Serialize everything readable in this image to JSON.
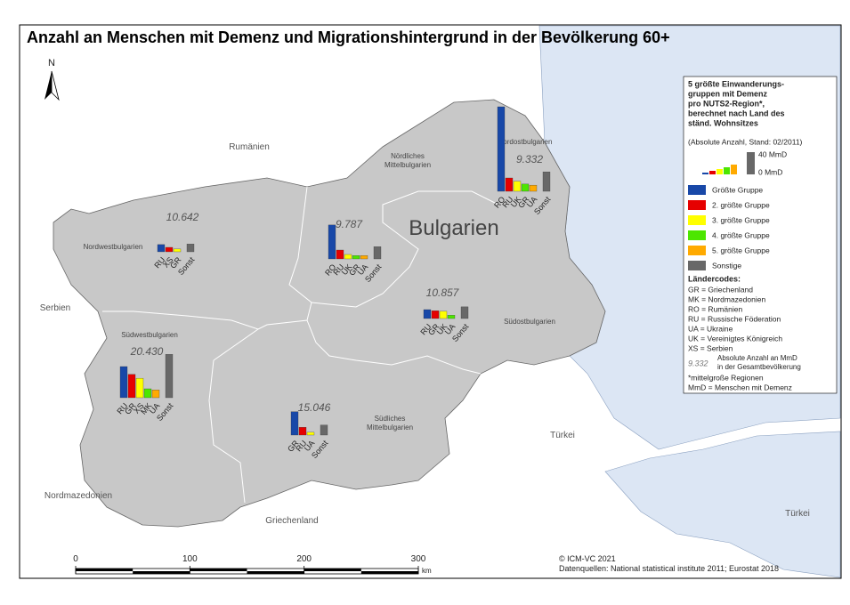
{
  "title": "Anzahl an Menschen mit Demenz und Migrationshintergrund in der Bevölkerung 60+",
  "north": "N",
  "places": [
    "Rumänien",
    "Serbien",
    "Nordmazedonien",
    "Griechenland",
    "Türkei",
    "Türkei"
  ],
  "country_label": "Bulgarien",
  "regions": [
    {
      "name": [
        "Nordwestbulgarien"
      ],
      "total": "10.642",
      "bars": [
        {
          "code": "RU",
          "value": 13
        },
        {
          "code": "XS",
          "value": 8
        },
        {
          "code": "GR",
          "value": 5
        },
        {
          "code": "Sonst",
          "value": 14
        }
      ]
    },
    {
      "name": [
        "Nördliches",
        "Mittelbulgarien"
      ],
      "total": "9.787",
      "bars": [
        {
          "code": "RO",
          "value": 61
        },
        {
          "code": "RU",
          "value": 16
        },
        {
          "code": "UK",
          "value": 8
        },
        {
          "code": "GR",
          "value": 6
        },
        {
          "code": "UA",
          "value": 6
        },
        {
          "code": "Sonst",
          "value": 22
        }
      ]
    },
    {
      "name": [
        "Nordostbulgarien"
      ],
      "total": "9.332",
      "bars": [
        {
          "code": "RO",
          "value": 152
        },
        {
          "code": "RU",
          "value": 24
        },
        {
          "code": "UK",
          "value": 18
        },
        {
          "code": "GR",
          "value": 13
        },
        {
          "code": "UA",
          "value": 11
        },
        {
          "code": "Sonst",
          "value": 35
        }
      ]
    },
    {
      "name": [
        "Südostbulgarien"
      ],
      "total": "10.857",
      "bars": [
        {
          "code": "RU",
          "value": 16
        },
        {
          "code": "GR",
          "value": 14
        },
        {
          "code": "UK",
          "value": 13
        },
        {
          "code": "UA",
          "value": 6
        },
        {
          "code": "Sonst",
          "value": 21
        }
      ]
    },
    {
      "name": [
        "Südwestbulgarien"
      ],
      "total": "20.430",
      "bars": [
        {
          "code": "RU",
          "value": 56
        },
        {
          "code": "GR",
          "value": 42
        },
        {
          "code": "XS",
          "value": 35
        },
        {
          "code": "MK",
          "value": 16
        },
        {
          "code": "UA",
          "value": 14
        },
        {
          "code": "Sonst",
          "value": 78
        }
      ]
    },
    {
      "name": [
        "Südliches",
        "Mittelbulgarien"
      ],
      "total": "15.046",
      "bars": [
        {
          "code": "GR",
          "value": 42
        },
        {
          "code": "RU",
          "value": 14
        },
        {
          "code": "UA",
          "value": 5
        },
        {
          "code": "Sonst",
          "value": 18
        }
      ]
    }
  ],
  "legend": {
    "title": [
      "5 größte Einwanderungs-",
      "gruppen mit Demenz",
      "pro NUTS2-Region*,",
      "berechnet nach Land des",
      "ständ. Wohnsitzes"
    ],
    "subtitle": "(Absolute Anzahl, Stand: 02/2011)",
    "scale_value": 40,
    "scale_label": "40 MmD",
    "zero_label": "0 MmD",
    "items": [
      {
        "label": "Größte Gruppe",
        "color": "#1848a8"
      },
      {
        "label": "2. größte Gruppe",
        "color": "#e60000"
      },
      {
        "label": "3. größte Gruppe",
        "color": "#ffff00"
      },
      {
        "label": "4. größte Gruppe",
        "color": "#4ce600"
      },
      {
        "label": "5. größte Gruppe",
        "color": "#ffaa00"
      },
      {
        "label": "Sonstige",
        "color": "#686868"
      }
    ],
    "codes_title": "Ländercodes:",
    "codes": [
      "GR = Griechenland",
      "MK = Nordmazedonien",
      "RO = Rumänien",
      "RU = Russische Föderation",
      "UA = Ukraine",
      "UK = Vereinigtes Königreich",
      "XS = Serbien"
    ],
    "example_value": "9.332",
    "example_text": [
      "Absolute Anzahl an MmD",
      "in der Gesamtbevölkerung"
    ],
    "notes": [
      "*mittelgroße Regionen",
      "MmD = Menschen mit Demenz"
    ]
  },
  "scalebar": {
    "ticks": [
      0,
      100,
      200,
      300
    ],
    "unit": "km"
  },
  "credits": [
    "© ICM-VC 2021",
    "Datenquellen: National statistical institute 2011; Eurostat 2018"
  ]
}
